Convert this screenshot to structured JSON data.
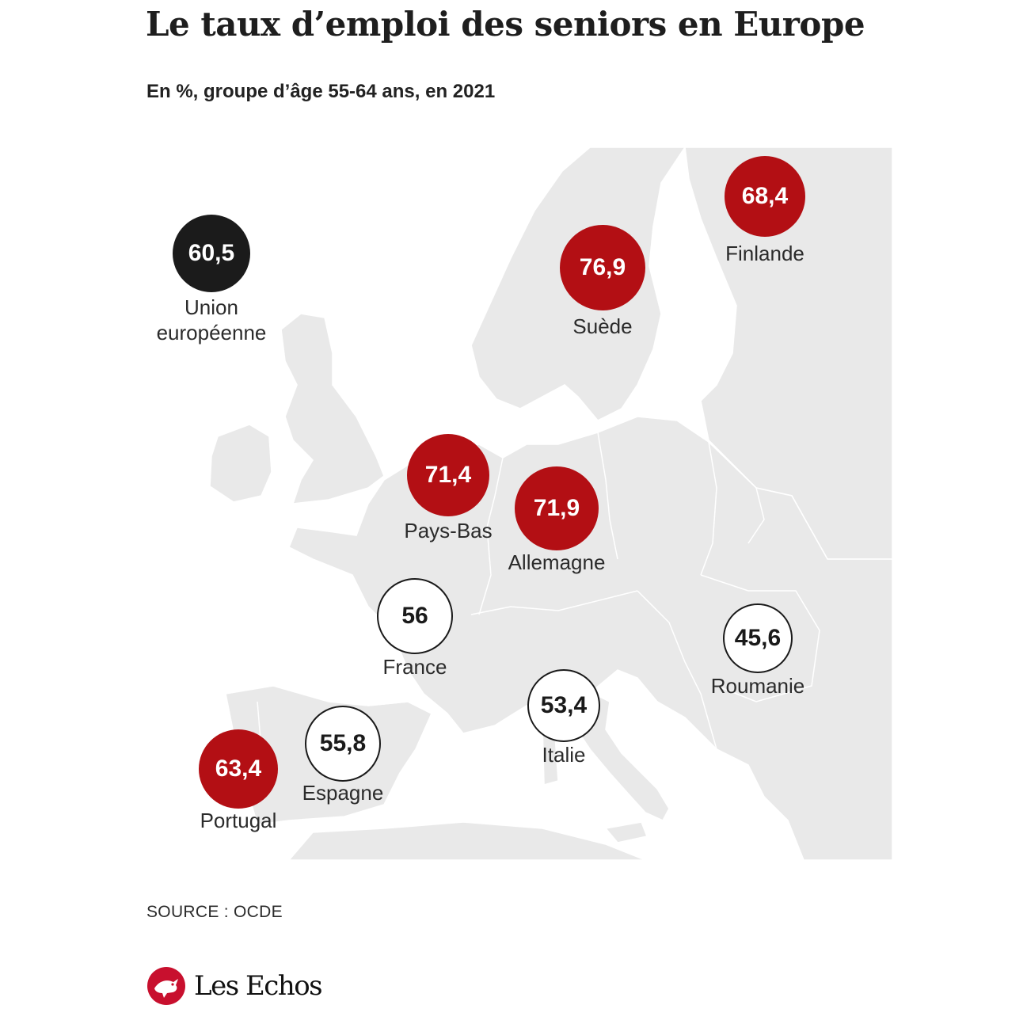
{
  "title": "Le taux d’emploi des seniors en Europe",
  "subtitle": "En %, groupe d’âge 55-64 ans, en 2021",
  "source": "SOURCE : OCDE",
  "brand": "Les Echos",
  "colors": {
    "above_eu": "#b30f14",
    "below_eu": "#ffffff",
    "eu_average": "#1b1b1b",
    "land": "#e9e9e9"
  },
  "eu": {
    "value": "60,5",
    "label_line1": "Union",
    "label_line2": "européenne"
  },
  "countries": [
    {
      "name": "Finlande",
      "value": "68,4"
    },
    {
      "name": "Suède",
      "value": "76,9"
    },
    {
      "name": "Pays-Bas",
      "value": "71,4"
    },
    {
      "name": "Allemagne",
      "value": "71,9"
    },
    {
      "name": "France",
      "value": "56"
    },
    {
      "name": "Roumanie",
      "value": "45,6"
    },
    {
      "name": "Italie",
      "value": "53,4"
    },
    {
      "name": "Espagne",
      "value": "55,8"
    },
    {
      "name": "Portugal",
      "value": "63,4"
    }
  ]
}
